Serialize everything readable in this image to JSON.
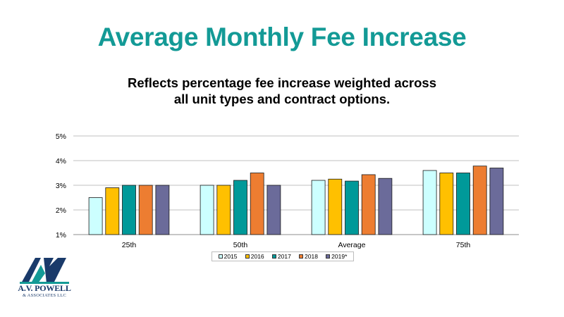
{
  "title": "Average Monthly Fee Increase",
  "subtitle_lines": [
    "Reflects percentage fee increase weighted across",
    "all unit types and contract options."
  ],
  "chart_data": {
    "type": "bar",
    "categories": [
      "25th",
      "50th",
      "Average",
      "75th"
    ],
    "series": [
      {
        "name": "2015",
        "color": "#ccffff",
        "values": [
          2.5,
          3.0,
          3.2,
          3.6
        ]
      },
      {
        "name": "2016",
        "color": "#ffc000",
        "values": [
          2.9,
          3.0,
          3.25,
          3.5
        ]
      },
      {
        "name": "2017",
        "color": "#009999",
        "values": [
          3.0,
          3.2,
          3.17,
          3.5
        ]
      },
      {
        "name": "2018",
        "color": "#ed7d31",
        "values": [
          3.0,
          3.5,
          3.43,
          3.78
        ]
      },
      {
        "name": "2019*",
        "color": "#6b6b9a",
        "values": [
          3.0,
          3.0,
          3.28,
          3.7
        ]
      }
    ],
    "ylim": [
      1,
      5
    ],
    "yticks": [
      "1%",
      "2%",
      "3%",
      "4%",
      "5%"
    ],
    "ytick_values": [
      1,
      2,
      3,
      4,
      5
    ],
    "grid": true,
    "legend_position": "bottom"
  },
  "logo": {
    "line1": "A.V. POWELL",
    "line2": "& ASSOCIATES LLC",
    "mark_colors": [
      "#1a3a6a",
      "#139a96"
    ]
  }
}
